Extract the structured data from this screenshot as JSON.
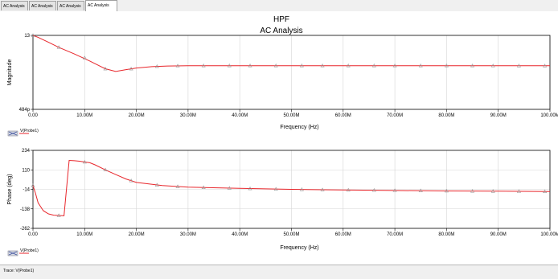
{
  "tabs": [
    {
      "label": "AC Analysis",
      "active": false
    },
    {
      "label": "AC Analysis",
      "active": false
    },
    {
      "label": "AC Analysis",
      "active": false
    },
    {
      "label": "AC Analysis",
      "active": true
    }
  ],
  "status": {
    "trace_text": "Trace: V(Probe1)"
  },
  "colors": {
    "trace": "#e8262b",
    "grid": "#d6d6d6",
    "axis": "#000000"
  },
  "chart_data": [
    {
      "type": "line",
      "title": "HPF",
      "subtitle": "AC Analysis",
      "xlabel": "Frequency (Hz)",
      "ylabel": "Magnitude",
      "xlim": [
        0,
        100
      ],
      "x_unit": "MHz",
      "xticks": [
        "0.00",
        "10.00M",
        "20.00M",
        "30.00M",
        "40.00M",
        "50.00M",
        "60.00M",
        "70.00M",
        "80.00M",
        "90.00M",
        "100.00M"
      ],
      "yscale": "log",
      "ylim": [
        0.000484,
        13
      ],
      "yticks": [
        "13",
        "484p"
      ],
      "grid": true,
      "legend": "bottom-left",
      "series": [
        {
          "name": "V(Probe1)",
          "x": [
            0,
            1,
            3,
            5,
            8,
            11,
            14,
            16,
            18,
            20,
            23,
            26,
            30,
            40,
            50,
            60,
            70,
            80,
            90,
            100
          ],
          "y": [
            13,
            10,
            5,
            2.5,
            1.0,
            0.38,
            0.13,
            0.09,
            0.115,
            0.145,
            0.175,
            0.19,
            0.2,
            0.2,
            0.2,
            0.2,
            0.2,
            0.2,
            0.198,
            0.196
          ],
          "marker_x": [
            0,
            5,
            10,
            14,
            19,
            24,
            28,
            33,
            38,
            42,
            47,
            52,
            56,
            61,
            66,
            70,
            75,
            80,
            85,
            89,
            94,
            99
          ]
        }
      ]
    },
    {
      "type": "line",
      "xlabel": "Frequency (Hz)",
      "ylabel": "Phase (deg)",
      "xlim": [
        0,
        100
      ],
      "x_unit": "MHz",
      "xticks": [
        "0.00",
        "10.00M",
        "20.00M",
        "30.00M",
        "40.00M",
        "50.00M",
        "60.00M",
        "70.00M",
        "80.00M",
        "90.00M",
        "100.00M"
      ],
      "ylim": [
        -262,
        234
      ],
      "ytick_values": [
        234,
        110,
        -14,
        -138,
        -262
      ],
      "yticks": [
        "234",
        "110",
        "-14",
        "-138",
        "-262"
      ],
      "grid": true,
      "legend": "bottom-left",
      "series": [
        {
          "name": "V(Probe1)",
          "x": [
            0,
            0.5,
            1,
            2,
            3,
            4,
            5,
            6,
            7,
            8,
            9,
            10,
            11,
            12,
            14,
            16,
            18,
            20,
            25,
            30,
            40,
            50,
            60,
            70,
            80,
            90,
            100
          ],
          "y": [
            10,
            -40,
            -100,
            -150,
            -170,
            -178,
            -180,
            -182,
            170,
            168,
            165,
            160,
            155,
            142,
            110,
            80,
            52,
            30,
            10,
            0,
            -8,
            -14,
            -18,
            -21,
            -24,
            -26,
            -28
          ],
          "marker_x": [
            0,
            5,
            10,
            14,
            19,
            24,
            28,
            33,
            38,
            42,
            47,
            52,
            56,
            61,
            66,
            70,
            75,
            80,
            85,
            89,
            94,
            99
          ]
        }
      ]
    }
  ]
}
